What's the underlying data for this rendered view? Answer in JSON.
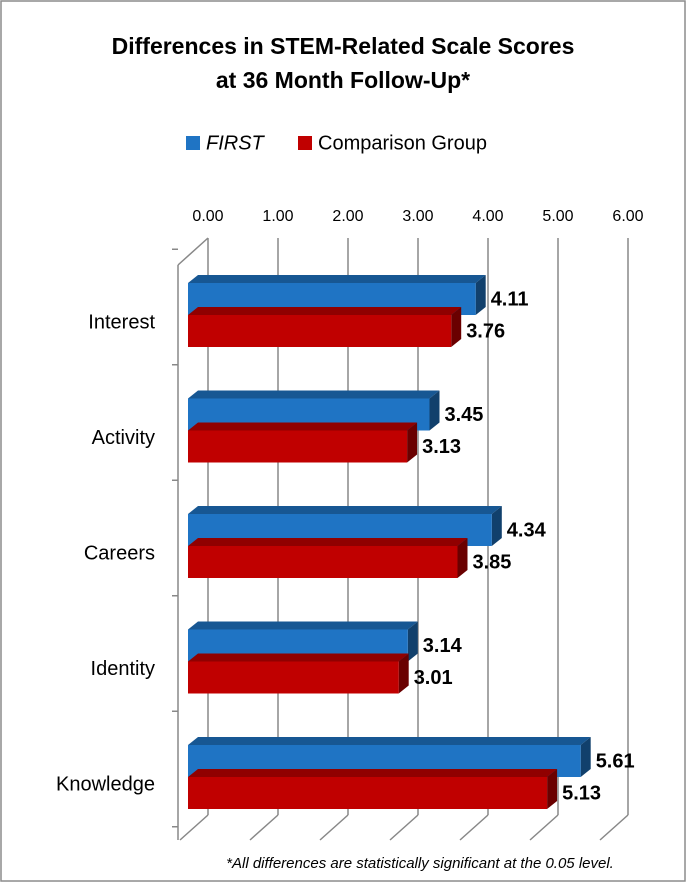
{
  "chart_data": {
    "type": "bar3d_horizontal",
    "title": [
      "Differences in STEM-Related Scale Scores",
      "at 36 Month Follow-Up*"
    ],
    "categories": [
      "Interest",
      "Activity",
      "Careers",
      "Identity",
      "Knowledge"
    ],
    "series": [
      {
        "name": "FIRST",
        "color": "#1f74c4",
        "values": [
          4.11,
          3.45,
          4.34,
          3.14,
          5.61
        ]
      },
      {
        "name": "Comparison Group",
        "color": "#c00000",
        "values": [
          3.76,
          3.13,
          3.85,
          3.01,
          5.13
        ]
      }
    ],
    "xlim": [
      0,
      6
    ],
    "xticks": [
      {
        "value": 0,
        "label": "0.00"
      },
      {
        "value": 1,
        "label": "1.00"
      },
      {
        "value": 2,
        "label": "2.00"
      },
      {
        "value": 3,
        "label": "3.00"
      },
      {
        "value": 4,
        "label": "4.00"
      },
      {
        "value": 5,
        "label": "5.00"
      },
      {
        "value": 6,
        "label": "6.00"
      }
    ],
    "grid": true,
    "legend": "top",
    "footnote": "*All differences are statistically significant at the 0.05 level."
  }
}
